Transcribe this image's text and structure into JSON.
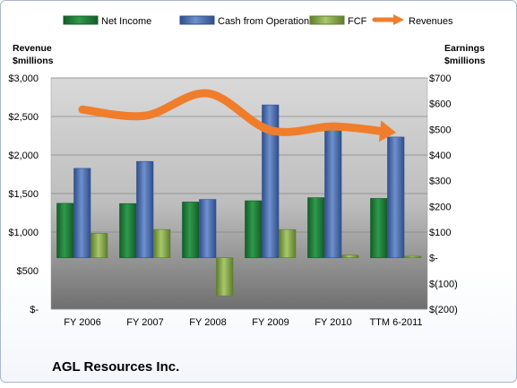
{
  "chart_data": {
    "type": "bar",
    "title": "AGL Resources Inc.",
    "categories": [
      "FY 2006",
      "FY 2007",
      "FY 2008",
      "FY 2009",
      "FY 2010",
      "TTM 6-2011"
    ],
    "series": [
      {
        "name": "Net Income",
        "axis": "right",
        "type": "bar",
        "color": "#1f7a3a",
        "values": [
          212,
          211,
          217,
          222,
          234,
          231
        ]
      },
      {
        "name": "Cash from Operations",
        "axis": "right",
        "type": "bar",
        "color": "#4a6fb0",
        "values": [
          348,
          375,
          227,
          595,
          505,
          470
        ]
      },
      {
        "name": "FCF",
        "axis": "right",
        "type": "bar",
        "color": "#86a64b",
        "values": [
          95,
          110,
          -148,
          110,
          10,
          6
        ]
      },
      {
        "name": "Revenues",
        "axis": "left",
        "type": "line",
        "color": "#f07d2c",
        "values": [
          2590,
          2510,
          2800,
          2320,
          2370,
          2290
        ]
      }
    ],
    "left_axis": {
      "title_lines": [
        "Revenue",
        "$millions"
      ],
      "min": 0,
      "max": 3000,
      "step": 500,
      "tick_labels": [
        "$-",
        "$500",
        "$1,000",
        "$1,500",
        "$2,000",
        "$2,500",
        "$3,000"
      ]
    },
    "right_axis": {
      "title_lines": [
        "Earnings",
        "$millions"
      ],
      "min": -200,
      "max": 700,
      "step": 100,
      "tick_labels": [
        "$(200)",
        "$(100)",
        "$-",
        "$100",
        "$200",
        "$300",
        "$400",
        "$500",
        "$600",
        "$700"
      ]
    },
    "legend": {
      "position": "top",
      "entries": [
        "Net Income",
        "Cash from Operations",
        "FCF",
        "Revenues"
      ]
    },
    "grid": true,
    "colors": {
      "plot_background": "#c8c8c8",
      "gridline": "#8a8a8a"
    }
  }
}
